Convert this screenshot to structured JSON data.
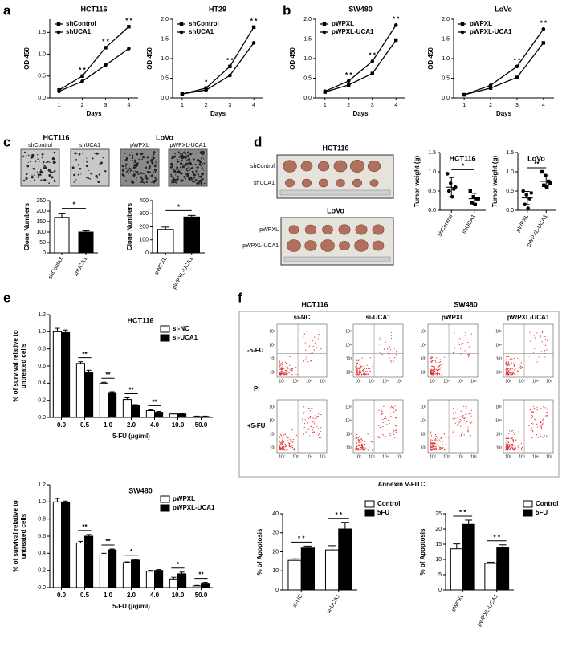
{
  "panel_letters": [
    "a",
    "b",
    "c",
    "d",
    "e",
    "f"
  ],
  "photos": {
    "colony": [
      {
        "title": "HCT116",
        "labels": [
          "shControl",
          "shUCA1"
        ]
      },
      {
        "title": "LoVo",
        "labels": [
          "pWPXL",
          "pWPXL-UCA1"
        ]
      }
    ],
    "tumor": [
      {
        "title": "HCT116",
        "rows": [
          "shControl",
          "shUCA1"
        ]
      },
      {
        "title": "LoVo",
        "rows": [
          "pWPXL",
          "pWPXL-UCA1"
        ]
      }
    ]
  },
  "flow": {
    "groups": [
      "HCT116",
      "SW480"
    ],
    "columns": [
      "si-NC",
      "si-UCA1",
      "pWPXL",
      "pWPXL-UCA1"
    ],
    "rows": [
      "-5-FU",
      "+5-FU"
    ],
    "ylabel": "PI",
    "xlabel": "Annexin V-FITC",
    "ticks": [
      "10²",
      "10³",
      "10⁴",
      "10⁵"
    ]
  },
  "chart_data": [
    {
      "type": "line",
      "title": "HCT116",
      "xlabel": "Days",
      "ylabel": "OD 450",
      "x": [
        1,
        2,
        3,
        4
      ],
      "xlim": [
        0.6,
        4.4
      ],
      "xticks": [
        1,
        2,
        3,
        4
      ],
      "ylim": [
        0,
        1.8
      ],
      "yticks": [
        {
          "value": 0,
          "label": "0.0"
        },
        0.5,
        {
          "value": 1,
          "label": "1.0"
        },
        1.5
      ],
      "series": [
        {
          "name": "shControl",
          "color": "#000000",
          "marker": "square",
          "values": [
            0.18,
            0.5,
            1.15,
            1.63
          ]
        },
        {
          "name": "shUCA1",
          "color": "#000000",
          "marker": "circle",
          "values": [
            0.15,
            0.38,
            0.75,
            1.13
          ]
        }
      ],
      "significance": [
        null,
        "* *",
        "* *",
        "* *"
      ]
    },
    {
      "type": "line",
      "title": "HT29",
      "xlabel": "Days",
      "ylabel": "OD 450",
      "x": [
        1,
        2,
        3,
        4
      ],
      "xlim": [
        0.6,
        4.4
      ],
      "xticks": [
        1,
        2,
        3,
        4
      ],
      "ylim": [
        0,
        2.0
      ],
      "yticks": [
        {
          "value": 0,
          "label": "0.0"
        },
        0.5,
        {
          "value": 1,
          "label": "1.0"
        },
        1.5,
        {
          "value": 2,
          "label": "2.0"
        }
      ],
      "series": [
        {
          "name": "shControl",
          "color": "#000000",
          "marker": "square",
          "values": [
            0.1,
            0.25,
            0.8,
            1.8
          ]
        },
        {
          "name": "shUCA1",
          "color": "#000000",
          "marker": "circle",
          "values": [
            0.1,
            0.2,
            0.57,
            1.4
          ]
        }
      ],
      "significance": [
        null,
        "*",
        "* *",
        "* *"
      ]
    },
    {
      "type": "line",
      "title": "SW480",
      "xlabel": "Days",
      "ylabel": "OD 450",
      "x": [
        1,
        2,
        3,
        4
      ],
      "xlim": [
        0.6,
        4.4
      ],
      "xticks": [
        1,
        2,
        3,
        4
      ],
      "ylim": [
        0,
        2.0
      ],
      "yticks": [
        {
          "value": 0,
          "label": "0.0"
        },
        0.5,
        {
          "value": 1,
          "label": "1.0"
        },
        1.5,
        {
          "value": 2,
          "label": "2.0"
        }
      ],
      "series": [
        {
          "name": "pWPXL",
          "color": "#000000",
          "marker": "square",
          "values": [
            0.15,
            0.33,
            0.62,
            1.47
          ]
        },
        {
          "name": "pWPXL-UCA1",
          "color": "#000000",
          "marker": "circle",
          "values": [
            0.17,
            0.43,
            0.93,
            1.85
          ]
        }
      ],
      "significance": [
        null,
        "* *",
        "* *",
        "* *"
      ]
    },
    {
      "type": "line",
      "title": "LoVo",
      "xlabel": "Days",
      "ylabel": "OD 450",
      "x": [
        1,
        2,
        3,
        4
      ],
      "xlim": [
        0.6,
        4.4
      ],
      "xticks": [
        1,
        2,
        3,
        4
      ],
      "ylim": [
        0,
        2.0
      ],
      "yticks": [
        {
          "value": 0,
          "label": "0.0"
        },
        0.5,
        {
          "value": 1,
          "label": "1.0"
        },
        1.5,
        {
          "value": 2,
          "label": "2.0"
        }
      ],
      "series": [
        {
          "name": "pWPXL",
          "color": "#000000",
          "marker": "square",
          "values": [
            0.08,
            0.25,
            0.52,
            1.4
          ]
        },
        {
          "name": "pWPXL-UCA1",
          "color": "#000000",
          "marker": "circle",
          "values": [
            0.08,
            0.32,
            0.8,
            1.75
          ]
        }
      ],
      "significance": [
        null,
        null,
        "* *",
        "* *"
      ]
    },
    {
      "type": "bar",
      "ylabel": "Clone Numbers",
      "categories": [
        "shControl",
        "shUCA1"
      ],
      "values": [
        170,
        100
      ],
      "errors": [
        20,
        6
      ],
      "colors": [
        "#ffffff",
        "#000000"
      ],
      "ylim": [
        0,
        250
      ],
      "yticks": [
        0,
        50,
        100,
        150,
        200,
        250
      ],
      "significance": "*"
    },
    {
      "type": "bar",
      "ylabel": "Clone Numbers",
      "categories": [
        "pWPXL",
        "pWPXL-UCA1"
      ],
      "values": [
        180,
        275
      ],
      "errors": [
        18,
        12
      ],
      "colors": [
        "#ffffff",
        "#000000"
      ],
      "ylim": [
        0,
        400
      ],
      "yticks": [
        0,
        100,
        200,
        300,
        400
      ],
      "significance": "*"
    },
    {
      "type": "dot",
      "title": "HCT116",
      "ylabel": "Tumor weight (g)",
      "categories": [
        "shControl",
        "shUCA1"
      ],
      "points": [
        [
          0.95,
          0.7,
          0.55,
          0.5,
          0.35,
          0.6
        ],
        [
          0.5,
          0.35,
          0.3,
          0.2,
          0.15,
          0.3
        ]
      ],
      "means": [
        0.6,
        0.3
      ],
      "errors": [
        0.25,
        0.14
      ],
      "markers": [
        "circle",
        "square"
      ],
      "color": "#000000",
      "ylim": [
        0,
        1.5
      ],
      "yticks": [
        {
          "value": 0,
          "label": "0.0"
        },
        0.5,
        {
          "value": 1,
          "label": "1.0"
        },
        1.5
      ],
      "significance": "*"
    },
    {
      "type": "dot",
      "title": "LoVo",
      "ylabel": "Tumor weight (g)",
      "categories": [
        "pWPXL",
        "pWPXL-UCA1"
      ],
      "points": [
        [
          0.5,
          0.4,
          0.3,
          0.15,
          0.05,
          0.45
        ],
        [
          1.0,
          0.9,
          0.75,
          0.65,
          0.6,
          0.7
        ]
      ],
      "means": [
        0.32,
        0.75
      ],
      "errors": [
        0.17,
        0.15
      ],
      "markers": [
        "circle",
        "square"
      ],
      "color": "#000000",
      "ylim": [
        0,
        1.5
      ],
      "yticks": [
        {
          "value": 0,
          "label": "0.0"
        },
        0.5,
        {
          "value": 1,
          "label": "1.0"
        },
        1.5
      ],
      "significance": "**"
    },
    {
      "type": "bar",
      "title": "HCT116",
      "xlabel": "5-FU (μg/ml)",
      "ylabel": [
        "% of survival relative to",
        "untreated cells"
      ],
      "categories": [
        "0.0",
        "0.5",
        "1.0",
        "2.0",
        "4.0",
        "10.0",
        "50.0"
      ],
      "ylim": [
        0,
        1.2
      ],
      "yticks": [
        {
          "value": 0,
          "label": "0.0"
        },
        0.2,
        0.4,
        0.6,
        0.8,
        {
          "value": 1,
          "label": "1.0"
        },
        1.2
      ],
      "series": [
        {
          "name": "si-NC",
          "color": "#ffffff",
          "values": [
            1.0,
            0.63,
            0.4,
            0.21,
            0.08,
            0.04,
            0.01
          ],
          "errors": [
            0.04,
            0.02,
            0.01,
            0.02,
            0.01,
            0.01,
            0.005
          ]
        },
        {
          "name": "si-UCA1",
          "color": "#000000",
          "values": [
            0.99,
            0.53,
            0.29,
            0.14,
            0.06,
            0.04,
            0.01
          ],
          "errors": [
            0.03,
            0.02,
            0.01,
            0.01,
            0.01,
            0.005,
            0.005
          ]
        }
      ],
      "significance": [
        null,
        "**",
        "**",
        "**",
        "**",
        null,
        null
      ]
    },
    {
      "type": "bar",
      "title": "SW480",
      "xlabel": "5-FU (μg/ml)",
      "ylabel": [
        "% of survival relative to",
        "untreated cells"
      ],
      "categories": [
        "0.0",
        "0.5",
        "1.0",
        "2.0",
        "4.0",
        "10.0",
        "50.0"
      ],
      "ylim": [
        0,
        1.2
      ],
      "yticks": [
        {
          "value": 0,
          "label": "0.0"
        },
        0.2,
        0.4,
        0.6,
        0.8,
        {
          "value": 1,
          "label": "1.0"
        },
        1.2
      ],
      "series": [
        {
          "name": "pWPXL",
          "color": "#ffffff",
          "values": [
            1.0,
            0.52,
            0.38,
            0.29,
            0.19,
            0.1,
            0.02
          ],
          "errors": [
            0.04,
            0.02,
            0.02,
            0.01,
            0.01,
            0.02,
            0.005
          ]
        },
        {
          "name": "pWPXL-UCA1",
          "color": "#000000",
          "values": [
            0.99,
            0.6,
            0.44,
            0.32,
            0.2,
            0.16,
            0.05
          ],
          "errors": [
            0.02,
            0.02,
            0.01,
            0.01,
            0.01,
            0.02,
            0.01
          ]
        }
      ],
      "significance": [
        null,
        "**",
        "**",
        "*",
        null,
        "*",
        "**"
      ]
    },
    {
      "type": "bar",
      "ylabel": "% of Apoptosis",
      "categories": [
        "si-NC",
        "si-UCA1"
      ],
      "ylim": [
        0,
        40
      ],
      "yticks": [
        0,
        10,
        20,
        30,
        40
      ],
      "series": [
        {
          "name": "Control",
          "color": "#ffffff",
          "values": [
            15.5,
            21.0
          ],
          "errors": [
            0.8,
            2.2
          ]
        },
        {
          "name": "5FU",
          "color": "#000000",
          "values": [
            22.0,
            32.0
          ],
          "errors": [
            1.0,
            3.5
          ]
        }
      ],
      "significance": [
        "* *",
        "* *"
      ]
    },
    {
      "type": "bar",
      "ylabel": "% of Apoptosis",
      "categories": [
        "pWPXL",
        "pWPXL-UCA1"
      ],
      "ylim": [
        0,
        25
      ],
      "yticks": [
        0,
        5,
        10,
        15,
        20,
        25
      ],
      "series": [
        {
          "name": "Control",
          "color": "#ffffff",
          "values": [
            13.5,
            8.7
          ],
          "errors": [
            1.6,
            0.4
          ]
        },
        {
          "name": "5FU",
          "color": "#000000",
          "values": [
            21.5,
            13.8
          ],
          "errors": [
            1.4,
            1.0
          ]
        }
      ],
      "significance": [
        "* *",
        "* *"
      ]
    }
  ]
}
